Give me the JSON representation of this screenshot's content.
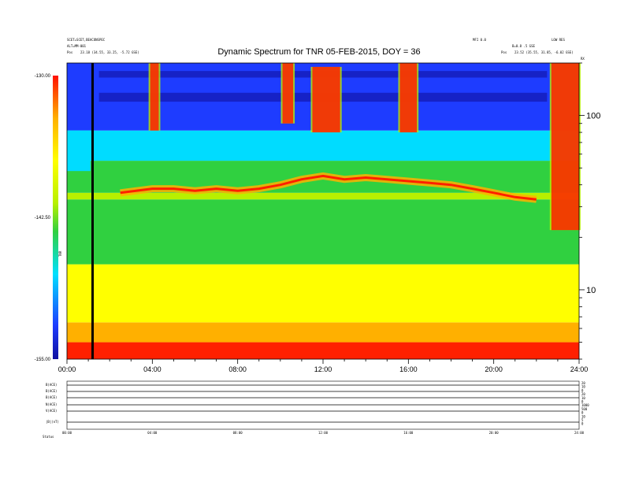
{
  "header": {
    "title": "Dynamic Spectrum for TNR 05-FEB-2015, DOY = 36",
    "left_meta_1": "SCET=SCET,BEACONSPEC",
    "left_meta_2": "ALT=MM-001",
    "left_pos_label": "Pos",
    "left_pos_value": "23.18 (34.55, 33.25, -5.72 GSE)",
    "right_meta_1": "MFI 0.0",
    "right_meta_2": "LOW RES",
    "right_meta_3": "B=0.8 .5 GSE",
    "right_pos_label": "Pos",
    "right_pos_value": "23.52 (35.55, 31.85, -6.02 GSE)",
    "corner_tag": "RX"
  },
  "colorbar": {
    "ticks": [
      "-130.00",
      "-142.50",
      "-155.00"
    ],
    "label": "TNR"
  },
  "bottom_panel": {
    "labels": [
      "B(ACE)",
      "B(ACE)",
      "B(ACE)",
      "N(ACE)",
      "V(ACE)",
      "|B|(nT)"
    ],
    "right_ticks": [
      "20",
      "10",
      "0",
      "20",
      "10",
      "0",
      "1000",
      "500",
      "0",
      "10",
      "5",
      "0"
    ],
    "x_ticks": [
      "00:00",
      "04:00",
      "08:00",
      "12:00",
      "16:00",
      "20:00",
      "24:00"
    ],
    "status_label": "Status"
  },
  "chart_data": {
    "type": "heatmap",
    "title": "Dynamic Spectrum for TNR 05-FEB-2015, DOY = 36",
    "xlabel": "",
    "ylabel": "",
    "x_ticks": [
      "00:00",
      "04:00",
      "08:00",
      "12:00",
      "16:00",
      "20:00",
      "24:00"
    ],
    "x_range_hours": [
      0,
      24
    ],
    "y_scale": "log",
    "y_ticks": [
      10,
      100
    ],
    "y_range": [
      4,
      200
    ],
    "color_range_db": [
      -155,
      -130
    ],
    "colormap": [
      "#1010a0",
      "#1e3cff",
      "#00dcff",
      "#30d040",
      "#b8f000",
      "#ffff00",
      "#ffb000",
      "#ff2000"
    ],
    "marker_time_hours": 1.2,
    "plasma_line": {
      "x": [
        2.5,
        4,
        5,
        6,
        7,
        8,
        9,
        10,
        11,
        12,
        13,
        14,
        15,
        16,
        17,
        18,
        19,
        20,
        21,
        22
      ],
      "y": [
        36,
        38,
        38,
        37,
        38,
        37,
        38,
        40,
        43,
        45,
        43,
        44,
        43,
        42,
        41,
        40,
        38,
        36,
        34,
        33
      ]
    },
    "bursts": [
      {
        "t0": 3.9,
        "t1": 4.3,
        "f0": 82,
        "f1": 200
      },
      {
        "t0": 10.1,
        "t1": 10.6,
        "f0": 90,
        "f1": 200
      },
      {
        "t0": 11.5,
        "t1": 12.8,
        "f0": 80,
        "f1": 190
      },
      {
        "t0": 15.6,
        "t1": 16.4,
        "f0": 80,
        "f1": 200
      },
      {
        "t0": 22.7,
        "t1": 24.0,
        "f0": 22,
        "f1": 200
      }
    ]
  }
}
